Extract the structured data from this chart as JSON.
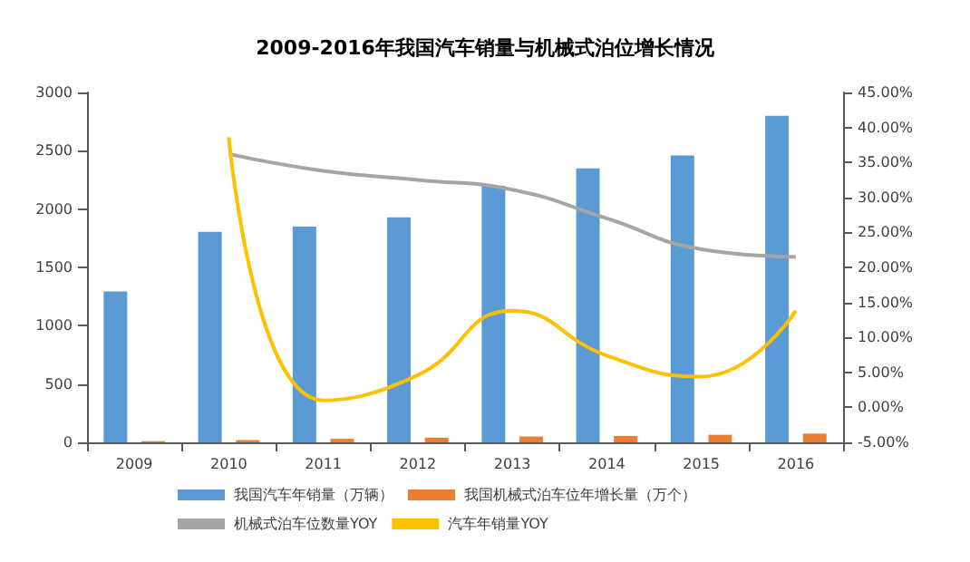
{
  "chart_data": {
    "type": "bar",
    "title": "2009-2016年我国汽车销量与机械式泊位增长情况",
    "categories": [
      "2009",
      "2010",
      "2011",
      "2012",
      "2013",
      "2014",
      "2015",
      "2016"
    ],
    "series": [
      {
        "name": "我国汽车年销量（万辆）",
        "color": "#5b9bd5",
        "values": [
          1295,
          1805,
          1850,
          1930,
          2200,
          2350,
          2460,
          2800
        ]
      },
      {
        "name": "我国机械式泊车位年增长量（万个）",
        "color": "#ed7d31",
        "values": [
          10,
          20,
          30,
          40,
          50,
          55,
          65,
          75
        ]
      },
      {
        "name": "机械式泊车位数量YOY",
        "type": "line",
        "axis": "y2",
        "color": "#a5a5a5",
        "values": [
          null,
          36.2,
          33.8,
          32.5,
          31.1,
          27.0,
          22.6,
          21.5
        ]
      },
      {
        "name": "汽车年销量YOY",
        "type": "line",
        "axis": "y2",
        "color": "#ffc000",
        "values": [
          null,
          38.6,
          1.0,
          4.6,
          13.8,
          7.4,
          4.4,
          13.8
        ]
      }
    ],
    "ylim": [
      0,
      3000
    ],
    "yticks": [
      0,
      500,
      1000,
      1500,
      2000,
      2500,
      3000
    ],
    "y2lim": [
      -5,
      45
    ],
    "y2ticks": [
      {
        "value": -5,
        "label": "-5.00%"
      },
      {
        "value": 0,
        "label": "0.00%"
      },
      {
        "value": 5,
        "label": "5.00%"
      },
      {
        "value": 10,
        "label": "10.00%"
      },
      {
        "value": 15,
        "label": "15.00%"
      },
      {
        "value": 20,
        "label": "20.00%"
      },
      {
        "value": 25,
        "label": "25.00%"
      },
      {
        "value": 30,
        "label": "30.00%"
      },
      {
        "value": 35,
        "label": "35.00%"
      },
      {
        "value": 40,
        "label": "40.00%"
      },
      {
        "value": 45,
        "label": "45.00%"
      }
    ],
    "grid": false,
    "legend": "bottom",
    "marker": "none"
  }
}
